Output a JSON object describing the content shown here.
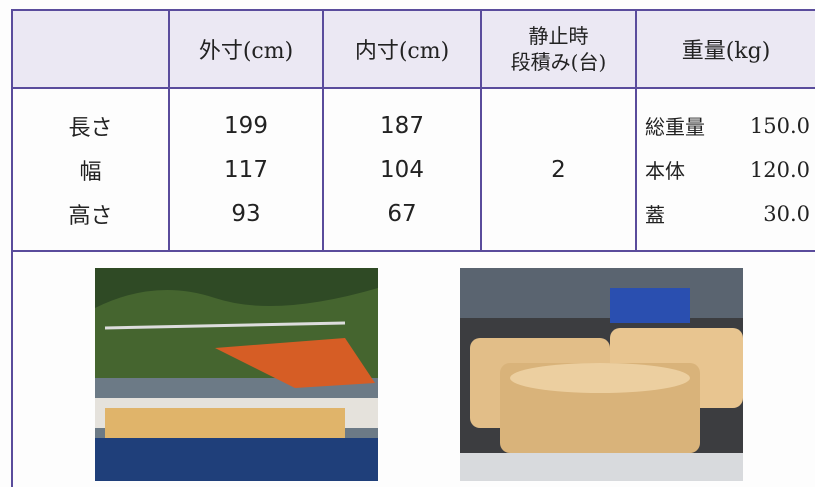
{
  "table": {
    "header": {
      "outer": "外寸(cm)",
      "inner": "内寸(cm)",
      "stack": [
        "静止時",
        "段積み(台)"
      ],
      "weight": "重量(kg)"
    },
    "rows": [
      {
        "label": "長さ",
        "outer": "199",
        "inner": "187"
      },
      {
        "label": "幅",
        "outer": "117",
        "inner": "104"
      },
      {
        "label": "高さ",
        "outer": "93",
        "inner": "67"
      }
    ],
    "stack_value": "2",
    "weights": [
      {
        "label": "総重量",
        "value": "150.0"
      },
      {
        "label": "本体",
        "value": "120.0"
      },
      {
        "label": "蓋",
        "value": "30.0"
      }
    ]
  }
}
